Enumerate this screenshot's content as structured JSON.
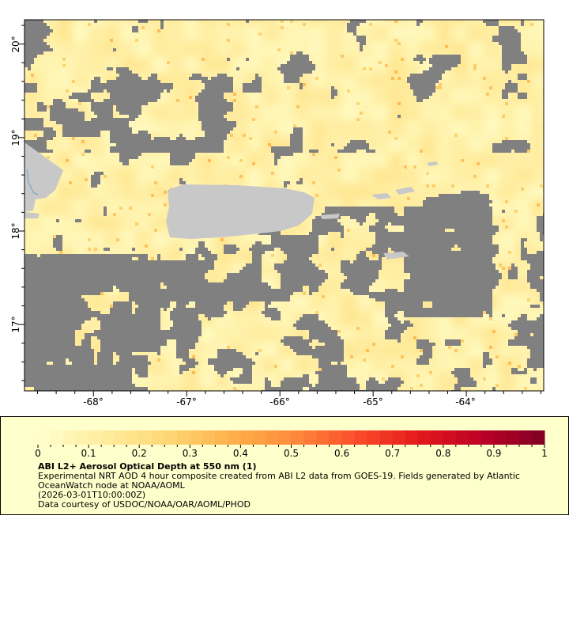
{
  "map": {
    "lon_range": [
      -68.74,
      -63.17
    ],
    "lat_range": [
      16.29,
      20.26
    ],
    "lon_ticks": [
      "-68°",
      "-67°",
      "-66°",
      "-65°",
      "-64°"
    ],
    "lon_tick_values": [
      -68,
      -67,
      -66,
      -65,
      -64
    ],
    "lat_ticks": [
      "20°",
      "19°",
      "18°",
      "17°"
    ],
    "lat_tick_values": [
      20,
      19,
      18,
      17
    ],
    "colors": {
      "no_data": "#808080",
      "land": "#c8c8c8",
      "river": "#6fa0d0"
    }
  },
  "legend": {
    "colorbar": {
      "min": 0,
      "max": 1,
      "tick_labels": [
        "0",
        "0.1",
        "0.2",
        "0.3",
        "0.4",
        "0.5",
        "0.6",
        "0.7",
        "0.8",
        "0.9",
        "1"
      ],
      "colors": [
        "#ffffcc",
        "#ffeda0",
        "#fed976",
        "#feb24c",
        "#fd8d3c",
        "#fc4e2a",
        "#e31a1c",
        "#bd0026",
        "#800026"
      ]
    },
    "title": "ABI L2+ Aerosol Optical Depth at 550 nm (1)",
    "line1": "Experimental NRT AOD 4 hour composite created from ABI L2 data from GOES-19. Fields generated by Atlantic OceanWatch node at NOAA/AOML",
    "time": "(2026-03-01T10:00:00Z)",
    "credit": "Data courtesy of USDOC/NOAA/OAR/AOML/PHOD"
  }
}
